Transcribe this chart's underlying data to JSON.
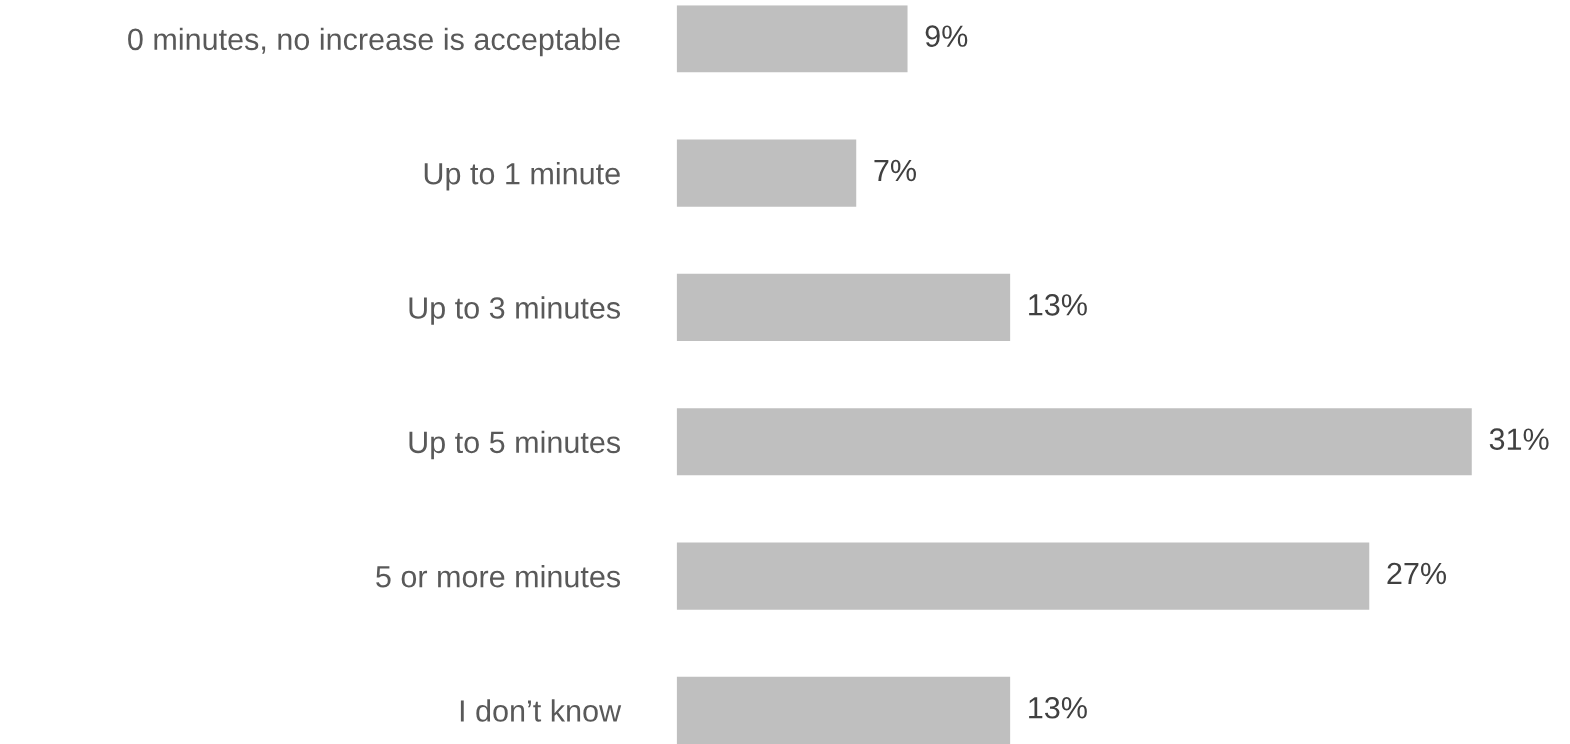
{
  "chart_data": {
    "type": "bar",
    "orientation": "horizontal",
    "categories": [
      "0 minutes, no increase is acceptable",
      "Up to 1 minute",
      "Up to 3 minutes",
      "Up to 5 minutes",
      "5 or more minutes",
      "I don’t know"
    ],
    "values": [
      9,
      7,
      13,
      31,
      27,
      13
    ],
    "value_labels": [
      "9%",
      "7%",
      "13%",
      "31%",
      "27%",
      "13%"
    ],
    "color": "#bfbfbf",
    "grid": false,
    "legend": false
  }
}
